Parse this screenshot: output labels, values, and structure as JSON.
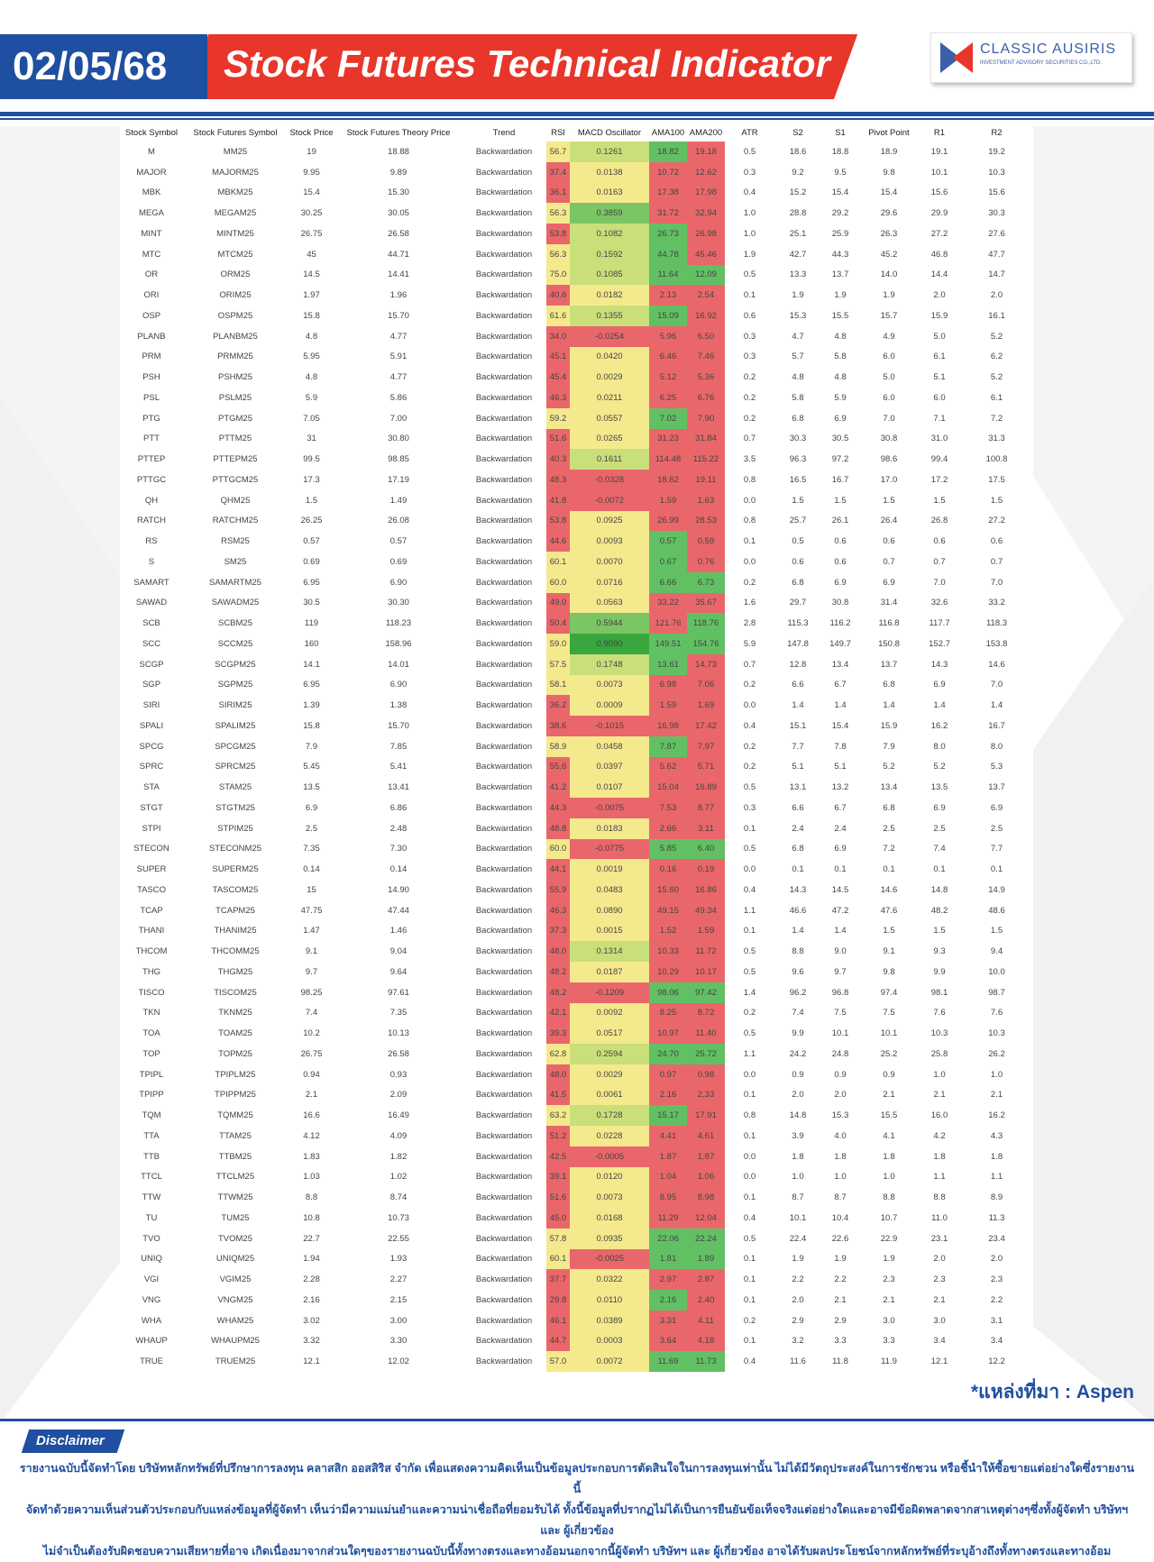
{
  "header": {
    "date": "02/05/68",
    "title": "Stock Futures Technical Indicator",
    "logo_name": "CLASSIC AUSIRIS",
    "logo_sub": "INVESTMENT ADVISORY SECURITIES CO.,LTD."
  },
  "colors": {
    "brand_blue": "#1f4fa0",
    "brand_red": "#e8362a",
    "cell_red": "#e9676a",
    "cell_yellow": "#f5e98e",
    "cell_green": "#62c064"
  },
  "table": {
    "columns": [
      "Stock Symbol",
      "Stock Futures Symbol",
      "Stock Price",
      "Stock Futures Theory Price",
      "Trend",
      "RSI",
      "MACD Oscillator",
      "AMA100",
      "AMA200",
      "ATR",
      "S2",
      "S1",
      "Pivot Point",
      "R1",
      "R2"
    ],
    "rows": [
      [
        "M",
        "MM25",
        "19",
        "18.88",
        "Backwardation",
        "56.7",
        "0.1261",
        "18.82",
        "19.18",
        "0.5",
        "18.6",
        "18.8",
        "18.9",
        "19.1",
        "19.2"
      ],
      [
        "MAJOR",
        "MAJORM25",
        "9.95",
        "9.89",
        "Backwardation",
        "37.4",
        "0.0138",
        "10.72",
        "12.62",
        "0.3",
        "9.2",
        "9.5",
        "9.8",
        "10.1",
        "10.3"
      ],
      [
        "MBK",
        "MBKM25",
        "15.4",
        "15.30",
        "Backwardation",
        "36.1",
        "0.0163",
        "17.38",
        "17.98",
        "0.4",
        "15.2",
        "15.4",
        "15.4",
        "15.6",
        "15.6"
      ],
      [
        "MEGA",
        "MEGAM25",
        "30.25",
        "30.05",
        "Backwardation",
        "56.3",
        "0.3859",
        "31.72",
        "32.94",
        "1.0",
        "28.8",
        "29.2",
        "29.6",
        "29.9",
        "30.3"
      ],
      [
        "MINT",
        "MINTM25",
        "26.75",
        "26.58",
        "Backwardation",
        "53.8",
        "0.1082",
        "26.73",
        "26.98",
        "1.0",
        "25.1",
        "25.9",
        "26.3",
        "27.2",
        "27.6"
      ],
      [
        "MTC",
        "MTCM25",
        "45",
        "44.71",
        "Backwardation",
        "56.3",
        "0.1592",
        "44.78",
        "45.46",
        "1.9",
        "42.7",
        "44.3",
        "45.2",
        "46.8",
        "47.7"
      ],
      [
        "OR",
        "ORM25",
        "14.5",
        "14.41",
        "Backwardation",
        "75.0",
        "0.1085",
        "11.64",
        "12.09",
        "0.5",
        "13.3",
        "13.7",
        "14.0",
        "14.4",
        "14.7"
      ],
      [
        "ORI",
        "ORIM25",
        "1.97",
        "1.96",
        "Backwardation",
        "40.6",
        "0.0182",
        "2.13",
        "2.54",
        "0.1",
        "1.9",
        "1.9",
        "1.9",
        "2.0",
        "2.0"
      ],
      [
        "OSP",
        "OSPM25",
        "15.8",
        "15.70",
        "Backwardation",
        "61.6",
        "0.1355",
        "15.09",
        "16.92",
        "0.6",
        "15.3",
        "15.5",
        "15.7",
        "15.9",
        "16.1"
      ],
      [
        "PLANB",
        "PLANBM25",
        "4.8",
        "4.77",
        "Backwardation",
        "34.0",
        "-0.0254",
        "5.96",
        "6.50",
        "0.3",
        "4.7",
        "4.8",
        "4.9",
        "5.0",
        "5.2"
      ],
      [
        "PRM",
        "PRMM25",
        "5.95",
        "5.91",
        "Backwardation",
        "45.1",
        "0.0420",
        "6.46",
        "7.46",
        "0.3",
        "5.7",
        "5.8",
        "6.0",
        "6.1",
        "6.2"
      ],
      [
        "PSH",
        "PSHM25",
        "4.8",
        "4.77",
        "Backwardation",
        "45.4",
        "0.0029",
        "5.12",
        "5.36",
        "0.2",
        "4.8",
        "4.8",
        "5.0",
        "5.1",
        "5.2"
      ],
      [
        "PSL",
        "PSLM25",
        "5.9",
        "5.86",
        "Backwardation",
        "46.3",
        "0.0211",
        "6.25",
        "6.76",
        "0.2",
        "5.8",
        "5.9",
        "6.0",
        "6.0",
        "6.1"
      ],
      [
        "PTG",
        "PTGM25",
        "7.05",
        "7.00",
        "Backwardation",
        "59.2",
        "0.0557",
        "7.02",
        "7.90",
        "0.2",
        "6.8",
        "6.9",
        "7.0",
        "7.1",
        "7.2"
      ],
      [
        "PTT",
        "PTTM25",
        "31",
        "30.80",
        "Backwardation",
        "51.6",
        "0.0265",
        "31.23",
        "31.84",
        "0.7",
        "30.3",
        "30.5",
        "30.8",
        "31.0",
        "31.3"
      ],
      [
        "PTTEP",
        "PTTEPM25",
        "99.5",
        "98.85",
        "Backwardation",
        "40.3",
        "0.1611",
        "114.48",
        "115.22",
        "3.5",
        "96.3",
        "97.2",
        "98.6",
        "99.4",
        "100.8"
      ],
      [
        "PTTGC",
        "PTTGCM25",
        "17.3",
        "17.19",
        "Backwardation",
        "48.3",
        "-0.0328",
        "18.62",
        "19.11",
        "0.8",
        "16.5",
        "16.7",
        "17.0",
        "17.2",
        "17.5"
      ],
      [
        "QH",
        "QHM25",
        "1.5",
        "1.49",
        "Backwardation",
        "41.8",
        "-0.0072",
        "1.59",
        "1.63",
        "0.0",
        "1.5",
        "1.5",
        "1.5",
        "1.5",
        "1.5"
      ],
      [
        "RATCH",
        "RATCHM25",
        "26.25",
        "26.08",
        "Backwardation",
        "53.8",
        "0.0925",
        "26.99",
        "28.53",
        "0.8",
        "25.7",
        "26.1",
        "26.4",
        "26.8",
        "27.2"
      ],
      [
        "RS",
        "RSM25",
        "0.57",
        "0.57",
        "Backwardation",
        "44.6",
        "0.0093",
        "0.57",
        "0.59",
        "0.1",
        "0.5",
        "0.6",
        "0.6",
        "0.6",
        "0.6"
      ],
      [
        "S",
        "SM25",
        "0.69",
        "0.69",
        "Backwardation",
        "60.1",
        "0.0070",
        "0.67",
        "0.76",
        "0.0",
        "0.6",
        "0.6",
        "0.7",
        "0.7",
        "0.7"
      ],
      [
        "SAMART",
        "SAMARTM25",
        "6.95",
        "6.90",
        "Backwardation",
        "60.0",
        "0.0716",
        "6.66",
        "6.73",
        "0.2",
        "6.8",
        "6.9",
        "6.9",
        "7.0",
        "7.0"
      ],
      [
        "SAWAD",
        "SAWADM25",
        "30.5",
        "30.30",
        "Backwardation",
        "49.0",
        "0.0563",
        "33.22",
        "35.67",
        "1.6",
        "29.7",
        "30.8",
        "31.4",
        "32.6",
        "33.2"
      ],
      [
        "SCB",
        "SCBM25",
        "119",
        "118.23",
        "Backwardation",
        "50.4",
        "0.5944",
        "121.76",
        "118.76",
        "2.8",
        "115.3",
        "116.2",
        "116.8",
        "117.7",
        "118.3"
      ],
      [
        "SCC",
        "SCCM25",
        "160",
        "158.96",
        "Backwardation",
        "59.0",
        "0.9090",
        "149.51",
        "154.76",
        "5.9",
        "147.8",
        "149.7",
        "150.8",
        "152.7",
        "153.8"
      ],
      [
        "SCGP",
        "SCGPM25",
        "14.1",
        "14.01",
        "Backwardation",
        "57.5",
        "0.1748",
        "13.61",
        "14.73",
        "0.7",
        "12.8",
        "13.4",
        "13.7",
        "14.3",
        "14.6"
      ],
      [
        "SGP",
        "SGPM25",
        "6.95",
        "6.90",
        "Backwardation",
        "58.1",
        "0.0073",
        "6.98",
        "7.06",
        "0.2",
        "6.6",
        "6.7",
        "6.8",
        "6.9",
        "7.0"
      ],
      [
        "SIRI",
        "SIRIM25",
        "1.39",
        "1.38",
        "Backwardation",
        "36.2",
        "0.0009",
        "1.59",
        "1.69",
        "0.0",
        "1.4",
        "1.4",
        "1.4",
        "1.4",
        "1.4"
      ],
      [
        "SPALI",
        "SPALIM25",
        "15.8",
        "15.70",
        "Backwardation",
        "38.6",
        "-0.1015",
        "16.98",
        "17.42",
        "0.4",
        "15.1",
        "15.4",
        "15.9",
        "16.2",
        "16.7"
      ],
      [
        "SPCG",
        "SPCGM25",
        "7.9",
        "7.85",
        "Backwardation",
        "58.9",
        "0.0458",
        "7.87",
        "7.97",
        "0.2",
        "7.7",
        "7.8",
        "7.9",
        "8.0",
        "8.0"
      ],
      [
        "SPRC",
        "SPRCM25",
        "5.45",
        "5.41",
        "Backwardation",
        "55.6",
        "0.0397",
        "5.62",
        "5.71",
        "0.2",
        "5.1",
        "5.1",
        "5.2",
        "5.2",
        "5.3"
      ],
      [
        "STA",
        "STAM25",
        "13.5",
        "13.41",
        "Backwardation",
        "41.2",
        "0.0107",
        "15.04",
        "16.89",
        "0.5",
        "13.1",
        "13.2",
        "13.4",
        "13.5",
        "13.7"
      ],
      [
        "STGT",
        "STGTM25",
        "6.9",
        "6.86",
        "Backwardation",
        "44.3",
        "-0.0075",
        "7.53",
        "8.77",
        "0.3",
        "6.6",
        "6.7",
        "6.8",
        "6.9",
        "6.9"
      ],
      [
        "STPI",
        "STPIM25",
        "2.5",
        "2.48",
        "Backwardation",
        "48.8",
        "0.0183",
        "2.66",
        "3.11",
        "0.1",
        "2.4",
        "2.4",
        "2.5",
        "2.5",
        "2.5"
      ],
      [
        "STECON",
        "STECONM25",
        "7.35",
        "7.30",
        "Backwardation",
        "60.0",
        "-0.0775",
        "5.85",
        "6.40",
        "0.5",
        "6.8",
        "6.9",
        "7.2",
        "7.4",
        "7.7"
      ],
      [
        "SUPER",
        "SUPERM25",
        "0.14",
        "0.14",
        "Backwardation",
        "44.1",
        "0.0019",
        "0.16",
        "0.19",
        "0.0",
        "0.1",
        "0.1",
        "0.1",
        "0.1",
        "0.1"
      ],
      [
        "TASCO",
        "TASCOM25",
        "15",
        "14.90",
        "Backwardation",
        "55.9",
        "0.0483",
        "15.60",
        "16.86",
        "0.4",
        "14.3",
        "14.5",
        "14.6",
        "14.8",
        "14.9"
      ],
      [
        "TCAP",
        "TCAPM25",
        "47.75",
        "47.44",
        "Backwardation",
        "46.3",
        "0.0890",
        "49.15",
        "49.34",
        "1.1",
        "46.6",
        "47.2",
        "47.6",
        "48.2",
        "48.6"
      ],
      [
        "THANI",
        "THANIM25",
        "1.47",
        "1.46",
        "Backwardation",
        "37.3",
        "0.0015",
        "1.52",
        "1.59",
        "0.1",
        "1.4",
        "1.4",
        "1.5",
        "1.5",
        "1.5"
      ],
      [
        "THCOM",
        "THCOMM25",
        "9.1",
        "9.04",
        "Backwardation",
        "48.0",
        "0.1314",
        "10.33",
        "11.72",
        "0.5",
        "8.8",
        "9.0",
        "9.1",
        "9.3",
        "9.4"
      ],
      [
        "THG",
        "THGM25",
        "9.7",
        "9.64",
        "Backwardation",
        "48.2",
        "0.0187",
        "10.29",
        "10.17",
        "0.5",
        "9.6",
        "9.7",
        "9.8",
        "9.9",
        "10.0"
      ],
      [
        "TISCO",
        "TISCOM25",
        "98.25",
        "97.61",
        "Backwardation",
        "48.2",
        "-0.1209",
        "98.06",
        "97.42",
        "1.4",
        "96.2",
        "96.8",
        "97.4",
        "98.1",
        "98.7"
      ],
      [
        "TKN",
        "TKNM25",
        "7.4",
        "7.35",
        "Backwardation",
        "42.1",
        "0.0092",
        "8.25",
        "8.72",
        "0.2",
        "7.4",
        "7.5",
        "7.5",
        "7.6",
        "7.6"
      ],
      [
        "TOA",
        "TOAM25",
        "10.2",
        "10.13",
        "Backwardation",
        "39.3",
        "0.0517",
        "10.97",
        "11.40",
        "0.5",
        "9.9",
        "10.1",
        "10.1",
        "10.3",
        "10.3"
      ],
      [
        "TOP",
        "TOPM25",
        "26.75",
        "26.58",
        "Backwardation",
        "62.8",
        "0.2594",
        "24.70",
        "25.72",
        "1.1",
        "24.2",
        "24.8",
        "25.2",
        "25.8",
        "26.2"
      ],
      [
        "TPIPL",
        "TPIPLM25",
        "0.94",
        "0.93",
        "Backwardation",
        "48.0",
        "0.0029",
        "0.97",
        "0.98",
        "0.0",
        "0.9",
        "0.9",
        "0.9",
        "1.0",
        "1.0"
      ],
      [
        "TPIPP",
        "TPIPPM25",
        "2.1",
        "2.09",
        "Backwardation",
        "41.5",
        "0.0061",
        "2.16",
        "2.33",
        "0.1",
        "2.0",
        "2.0",
        "2.1",
        "2.1",
        "2.1"
      ],
      [
        "TQM",
        "TQMM25",
        "16.6",
        "16.49",
        "Backwardation",
        "63.2",
        "0.1728",
        "15.17",
        "17.91",
        "0.8",
        "14.8",
        "15.3",
        "15.5",
        "16.0",
        "16.2"
      ],
      [
        "TTA",
        "TTAM25",
        "4.12",
        "4.09",
        "Backwardation",
        "51.2",
        "0.0228",
        "4.41",
        "4.61",
        "0.1",
        "3.9",
        "4.0",
        "4.1",
        "4.2",
        "4.3"
      ],
      [
        "TTB",
        "TTBM25",
        "1.83",
        "1.82",
        "Backwardation",
        "42.5",
        "-0.0005",
        "1.87",
        "1.87",
        "0.0",
        "1.8",
        "1.8",
        "1.8",
        "1.8",
        "1.8"
      ],
      [
        "TTCL",
        "TTCLM25",
        "1.03",
        "1.02",
        "Backwardation",
        "39.1",
        "0.0120",
        "1.04",
        "1.06",
        "0.0",
        "1.0",
        "1.0",
        "1.0",
        "1.1",
        "1.1"
      ],
      [
        "TTW",
        "TTWM25",
        "8.8",
        "8.74",
        "Backwardation",
        "51.6",
        "0.0073",
        "8.95",
        "8.98",
        "0.1",
        "8.7",
        "8.7",
        "8.8",
        "8.8",
        "8.9"
      ],
      [
        "TU",
        "TUM25",
        "10.8",
        "10.73",
        "Backwardation",
        "45.0",
        "0.0168",
        "11.29",
        "12.04",
        "0.4",
        "10.1",
        "10.4",
        "10.7",
        "11.0",
        "11.3"
      ],
      [
        "TVO",
        "TVOM25",
        "22.7",
        "22.55",
        "Backwardation",
        "57.8",
        "0.0935",
        "22.06",
        "22.24",
        "0.5",
        "22.4",
        "22.6",
        "22.9",
        "23.1",
        "23.4"
      ],
      [
        "UNIQ",
        "UNIQM25",
        "1.94",
        "1.93",
        "Backwardation",
        "60.1",
        "-0.0025",
        "1.81",
        "1.89",
        "0.1",
        "1.9",
        "1.9",
        "1.9",
        "2.0",
        "2.0"
      ],
      [
        "VGI",
        "VGIM25",
        "2.28",
        "2.27",
        "Backwardation",
        "37.7",
        "0.0322",
        "2.97",
        "2.87",
        "0.1",
        "2.2",
        "2.2",
        "2.3",
        "2.3",
        "2.3"
      ],
      [
        "VNG",
        "VNGM25",
        "2.16",
        "2.15",
        "Backwardation",
        "29.8",
        "0.0110",
        "2.16",
        "2.40",
        "0.1",
        "2.0",
        "2.1",
        "2.1",
        "2.1",
        "2.2"
      ],
      [
        "WHA",
        "WHAM25",
        "3.02",
        "3.00",
        "Backwardation",
        "46.1",
        "0.0389",
        "3.31",
        "4.11",
        "0.2",
        "2.9",
        "2.9",
        "3.0",
        "3.0",
        "3.1"
      ],
      [
        "WHAUP",
        "WHAUPM25",
        "3.32",
        "3.30",
        "Backwardation",
        "44.7",
        "0.0003",
        "3.64",
        "4.18",
        "0.1",
        "3.2",
        "3.3",
        "3.3",
        "3.4",
        "3.4"
      ],
      [
        "TRUE",
        "TRUEM25",
        "12.1",
        "12.02",
        "Backwardation",
        "57.0",
        "0.0072",
        "11.69",
        "11.73",
        "0.4",
        "11.6",
        "11.8",
        "11.9",
        "12.1",
        "12.2"
      ]
    ]
  },
  "source_note": "*แหล่งที่มา : Aspen",
  "disclaimer": {
    "label": "Disclaimer",
    "lines": [
      "รายงานฉบับนี้จัดทำโดย บริษัทหลักทรัพย์ที่ปรึกษาการลงทุน คลาสสิก ออสสิริส จำกัด เพื่อแสดงความคิดเห็นเป็นข้อมูลประกอบการตัดสินใจในการลงทุนเท่านั้น ไม่ได้มีวัตถุประสงค์ในการชักชวน หรือชี้นำให้ซื้อขายแต่อย่างใดซึ่งรายงานนี้",
      "จัดทำด้วยความเห็นส่วนตัวประกอบกับแหล่งข้อมูลที่ผู้จัดทำ เห็นว่ามีความแม่นยำและความน่าเชื่อถือที่ยอมรับได้ ทั้งนี้ข้อมูลที่ปรากฏไม่ได้เป็นการยืนยันข้อเท็จจริงแต่อย่างใดและอาจมีข้อผิดพลาดจากสาเหตุต่างๆซึ่งทั้งผู้จัดทำ บริษัทฯ และ ผู้เกี่ยวข้อง",
      "ไม่จำเป็นต้องรับผิดชอบความเสียหายที่อาจ เกิดเนื่องมาจากส่วนใดๆของรายงานฉบับนี้ทั้งทางตรงและทางอ้อมนอกจากนี้ผู้จัดทำ บริษัทฯ และ ผู้เกี่ยวข้อง อาจได้รับผลประโยชน์จากหลักทรัพย์ที่ระบุอ้างถึงทั้งทางตรงและทางอ้อม"
    ]
  }
}
